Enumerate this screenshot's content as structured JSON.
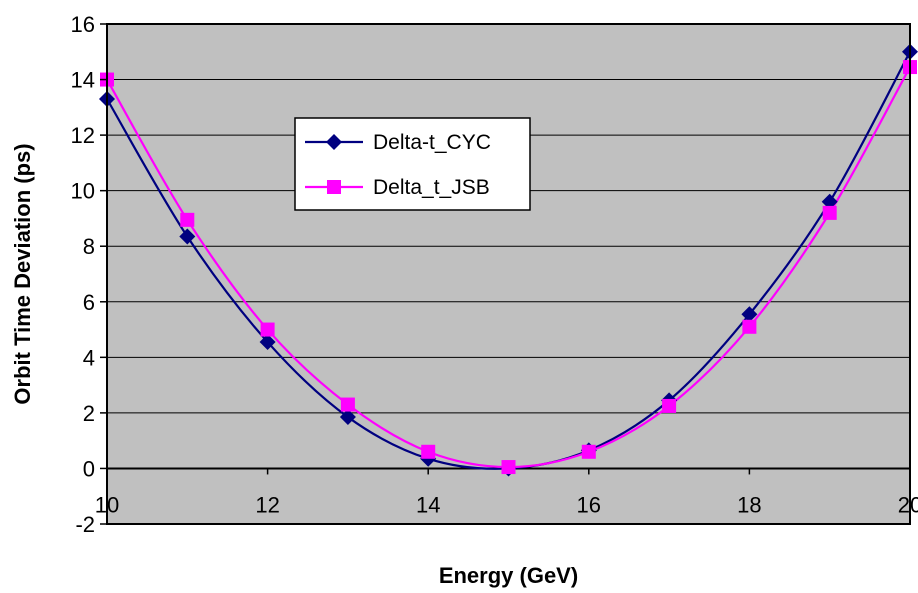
{
  "chart_data": {
    "type": "line",
    "title": "",
    "xlabel": "Energy (GeV)",
    "ylabel": "Orbit Time Deviation (ps)",
    "xlim": [
      10,
      20
    ],
    "ylim": [
      -2,
      16
    ],
    "x_ticks": [
      10,
      12,
      14,
      16,
      18,
      20
    ],
    "x_tick_labels": [
      "10",
      "12",
      "14",
      "16",
      "18",
      "20"
    ],
    "y_ticks": [
      -2,
      0,
      2,
      4,
      6,
      8,
      10,
      12,
      14,
      16
    ],
    "y_tick_labels": [
      "-2",
      "0",
      "2",
      "4",
      "6",
      "8",
      "10",
      "12",
      "14",
      "16"
    ],
    "grid": "horizontal",
    "legend_position": "upper-left-center",
    "x": [
      10,
      11,
      12,
      13,
      14,
      15,
      16,
      17,
      18,
      19,
      20
    ],
    "series": [
      {
        "name": "Delta-t_CYC",
        "values": [
          13.3,
          8.35,
          4.55,
          1.85,
          0.35,
          0.0,
          0.65,
          2.45,
          5.55,
          9.6,
          15.0
        ],
        "color": "#000080",
        "marker": "diamond"
      },
      {
        "name": "Delta_t_JSB",
        "values": [
          14.0,
          8.95,
          5.0,
          2.3,
          0.6,
          0.05,
          0.6,
          2.25,
          5.1,
          9.2,
          14.45
        ],
        "color": "#FF00FF",
        "marker": "square"
      }
    ],
    "plot_background": "#C0C0C0"
  }
}
